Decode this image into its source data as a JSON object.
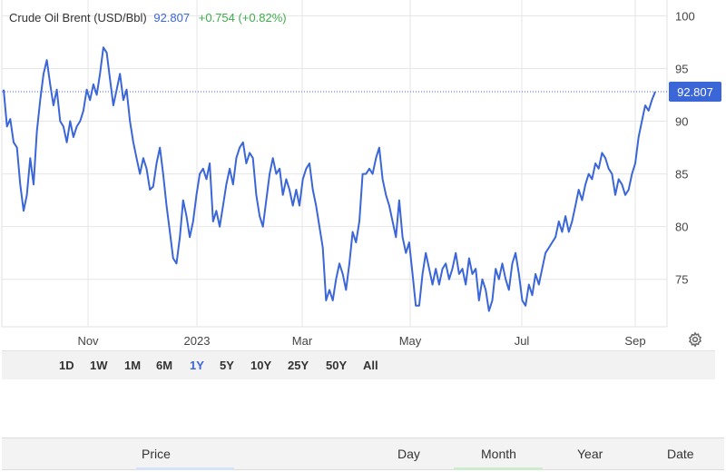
{
  "header": {
    "instrument": "Crude Oil Brent (USD/Bbl)",
    "price": "92.807",
    "change": "+0.754 (+0.82%)"
  },
  "colors": {
    "line": "#3b66d8",
    "positive": "#3fae49",
    "price_label_bg": "#3b66d8",
    "grid": "#e6e6e6",
    "underline_green": "#cdeccd",
    "underline_blue": "#d6e2f7"
  },
  "last_price_label": "92.807",
  "range_buttons": [
    "1D",
    "1W",
    "1M",
    "6M",
    "1Y",
    "5Y",
    "10Y",
    "25Y",
    "50Y",
    "All"
  ],
  "active_range": "1Y",
  "settings_icon": "gear-icon",
  "table": {
    "headers": [
      "Price",
      "Day",
      "Month",
      "Year",
      "Date"
    ]
  },
  "chart_data": {
    "type": "line",
    "yticks": [
      75,
      80,
      85,
      90,
      95,
      100
    ],
    "ylim": [
      70.5,
      101.5
    ],
    "xtick_labels": [
      "Nov",
      "2023",
      "Mar",
      "May",
      "Jul",
      "Sep"
    ],
    "grid": true,
    "legend": "none",
    "series": [
      {
        "values": [
          93.0,
          89.5,
          90.2,
          88.0,
          87.5,
          84.0,
          81.5,
          83.0,
          86.5,
          84.0,
          89.0,
          92.0,
          94.5,
          95.8,
          93.5,
          91.5,
          93.0,
          90.0,
          89.5,
          88.0,
          90.0,
          88.5,
          89.5,
          90.0,
          91.0,
          93.0,
          92.0,
          93.5,
          92.5,
          94.5,
          97.0,
          96.5,
          94.0,
          91.5,
          93.0,
          94.5,
          92.0,
          93.0,
          90.0,
          88.0,
          86.5,
          85.0,
          86.5,
          85.5,
          83.5,
          83.8,
          86.0,
          87.5,
          85.0,
          82.0,
          79.5,
          77.0,
          76.5,
          79.0,
          82.5,
          81.0,
          79.0,
          80.5,
          83.0,
          85.0,
          85.5,
          84.5,
          86.0,
          80.5,
          81.5,
          80.0,
          82.0,
          84.0,
          85.5,
          84.0,
          86.5,
          87.5,
          88.0,
          86.0,
          87.0,
          86.5,
          83.0,
          81.0,
          80.0,
          82.5,
          85.0,
          86.5,
          85.0,
          85.5,
          83.0,
          84.5,
          83.5,
          82.0,
          83.5,
          82.0,
          84.5,
          85.5,
          86.0,
          83.5,
          82.0,
          80.0,
          78.0,
          73.0,
          74.0,
          73.0,
          75.0,
          76.5,
          75.5,
          74.0,
          76.5,
          79.5,
          78.5,
          80.5,
          85.0,
          85.0,
          85.5,
          85.0,
          86.5,
          87.5,
          84.5,
          83.0,
          82.0,
          80.5,
          79.0,
          82.5,
          79.0,
          77.5,
          78.5,
          75.5,
          72.5,
          72.5,
          75.5,
          77.5,
          76.0,
          74.5,
          76.0,
          74.5,
          76.0,
          76.5,
          75.0,
          76.0,
          77.5,
          75.5,
          76.0,
          74.5,
          77.0,
          75.5,
          76.0,
          73.0,
          75.0,
          74.0,
          72.0,
          73.0,
          76.0,
          75.0,
          76.5,
          75.0,
          74.0,
          76.5,
          77.5,
          75.5,
          73.0,
          72.5,
          74.5,
          73.5,
          75.5,
          74.5,
          76.0,
          77.5,
          78.0,
          78.5,
          79.0,
          80.5,
          79.5,
          81.0,
          79.5,
          80.5,
          82.0,
          83.5,
          82.5,
          84.0,
          85.0,
          84.5,
          86.0,
          85.5,
          87.0,
          86.5,
          85.5,
          85.0,
          83.0,
          84.5,
          84.0,
          83.0,
          83.5,
          85.0,
          86.0,
          88.5,
          90.0,
          91.5,
          91.0,
          92.0,
          92.807
        ]
      }
    ]
  }
}
